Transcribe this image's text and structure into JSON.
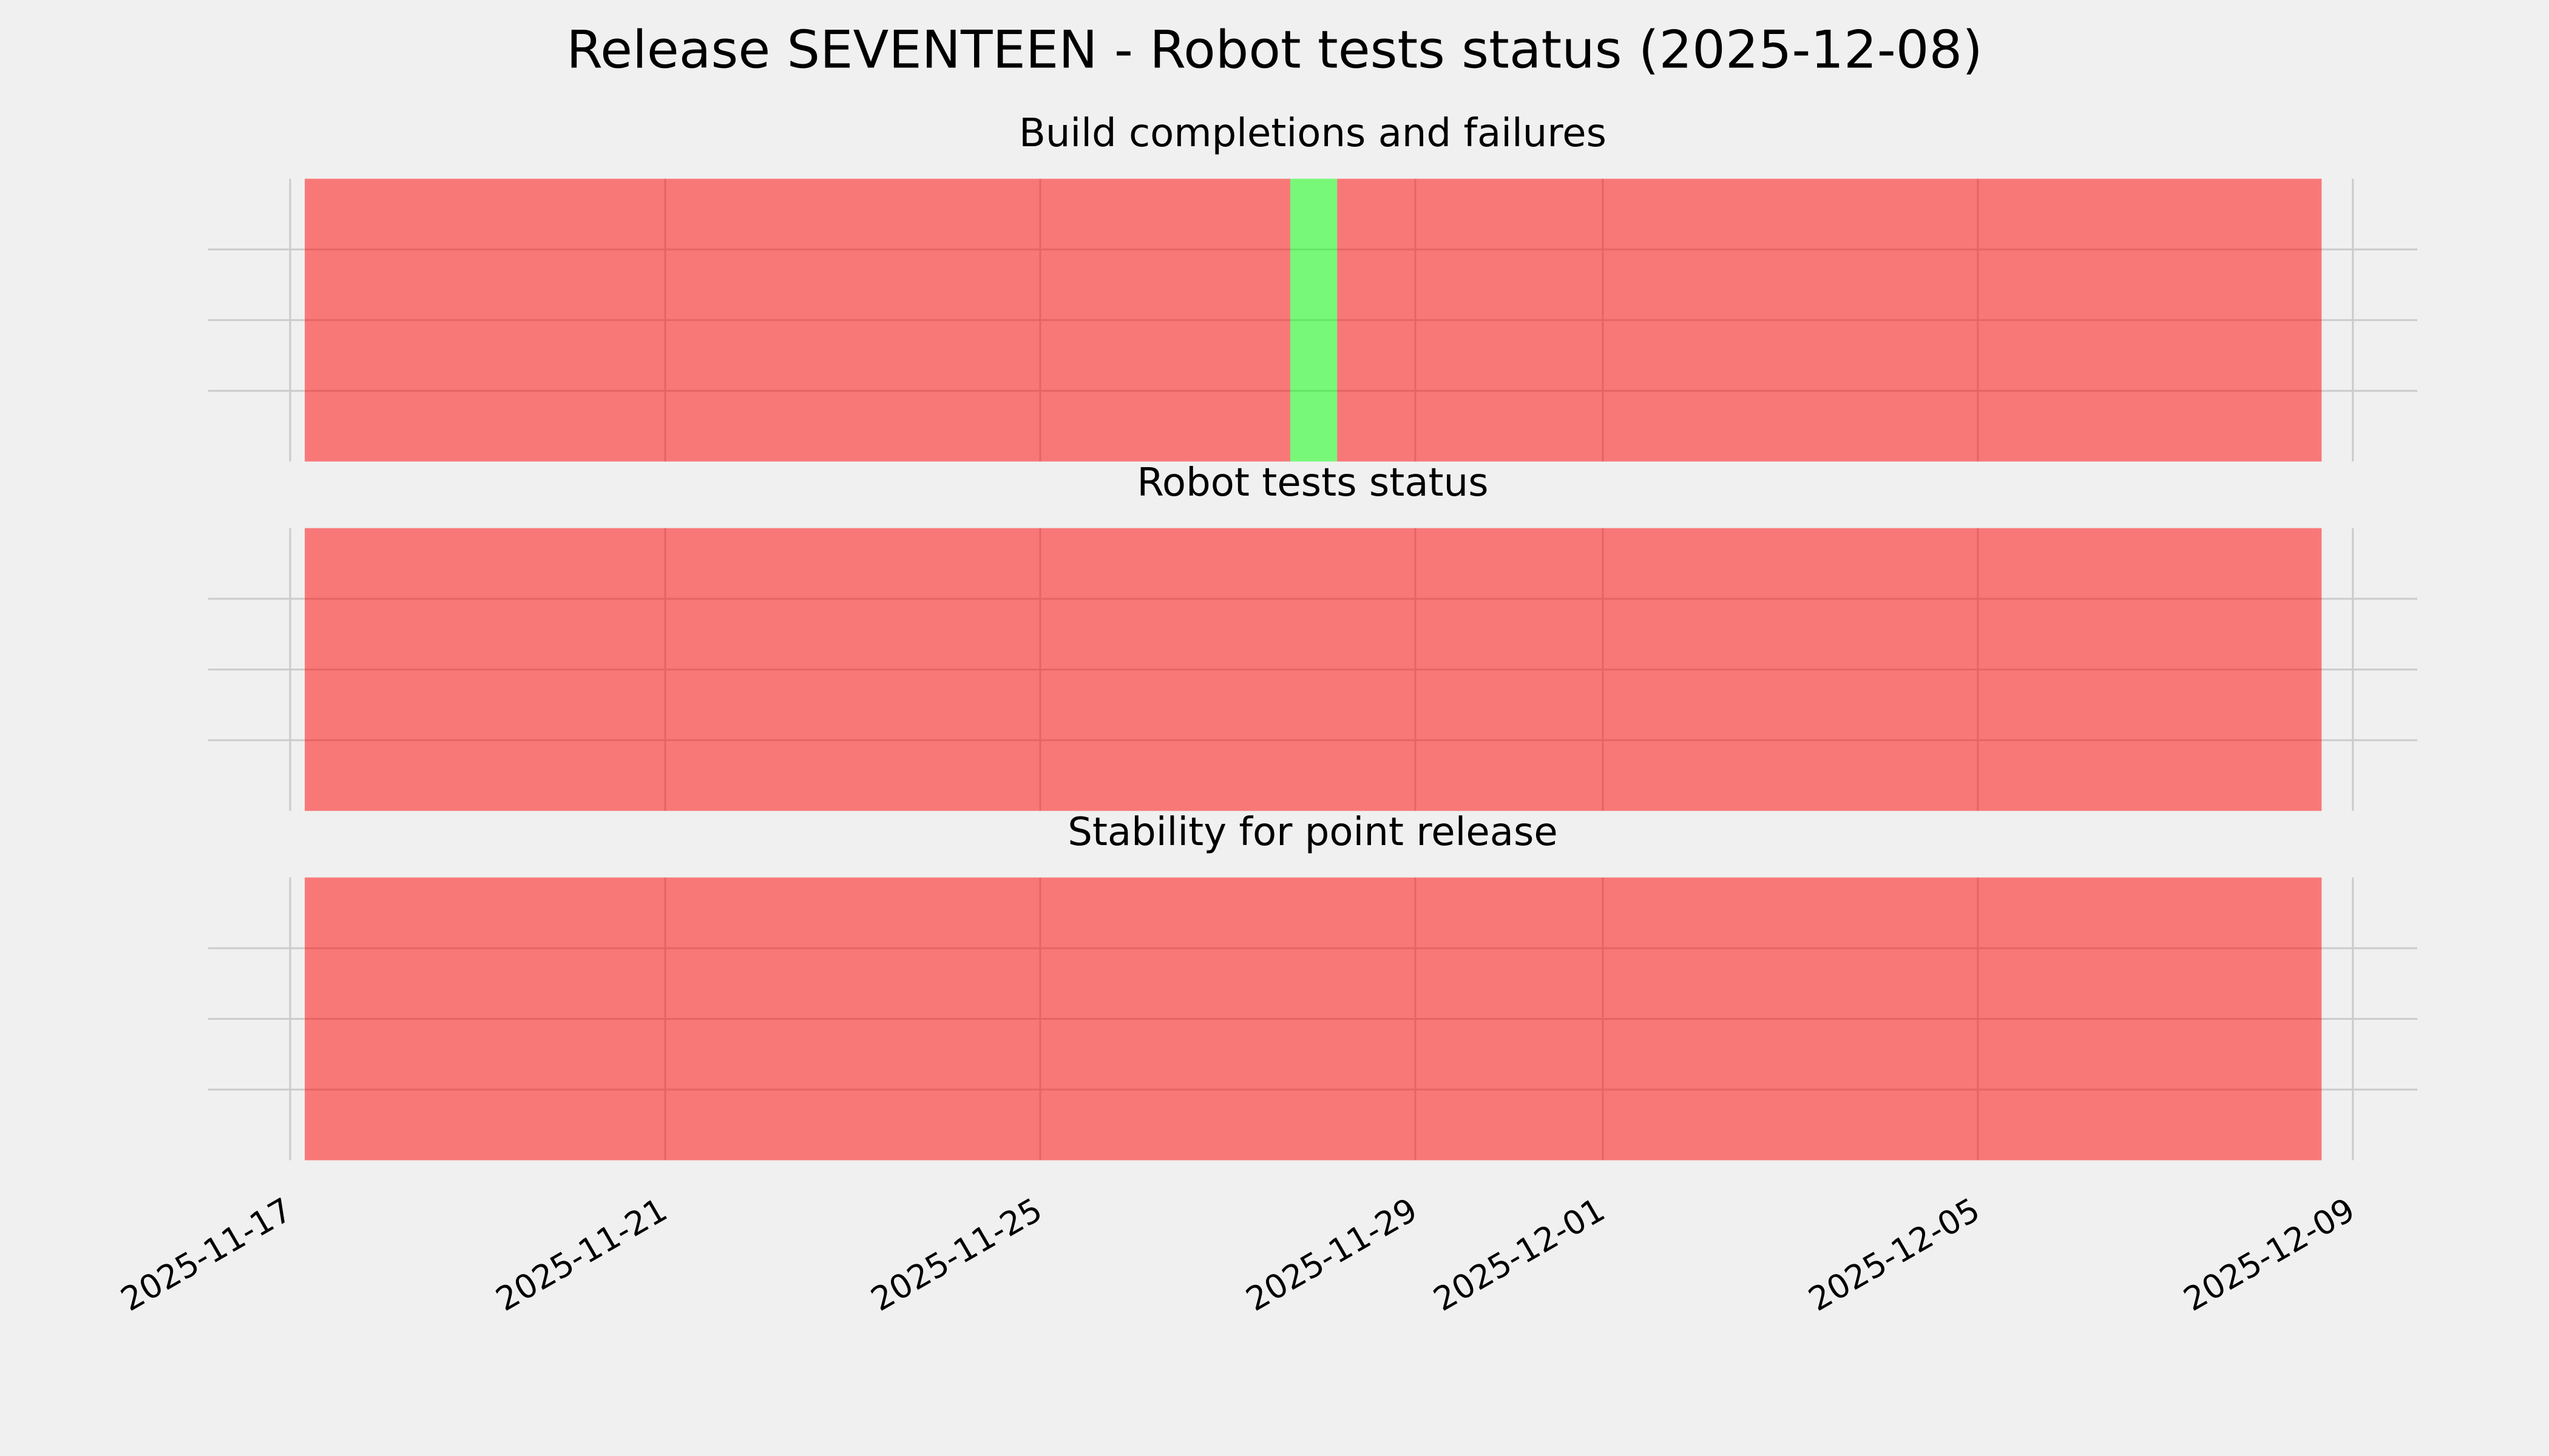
{
  "title": "Release SEVENTEEN - Robot tests status (2025-12-08)",
  "chart_data": [
    {
      "type": "timeline",
      "title": "Build completions and failures",
      "xlim": [
        "2025-11-16T03:00",
        "2025-12-09T16:30"
      ],
      "xticks": [
        "2025-11-17",
        "2025-11-21",
        "2025-11-25",
        "2025-11-29",
        "2025-12-01",
        "2025-12-05",
        "2025-12-09"
      ],
      "ylim": [
        0,
        1
      ],
      "yticks": [
        0.25,
        0.5,
        0.75
      ],
      "grid": true,
      "alpha": 0.5,
      "segments": [
        {
          "start": "2025-11-17T03:45",
          "end": "2025-11-27T16:00",
          "color": "#ff0000"
        },
        {
          "start": "2025-11-27T16:00",
          "end": "2025-11-28T04:00",
          "color": "#00ff00"
        },
        {
          "start": "2025-11-28T04:00",
          "end": "2025-12-08T16:00",
          "color": "#ff0000"
        }
      ]
    },
    {
      "type": "timeline",
      "title": "Robot tests status",
      "xlim": [
        "2025-11-16T03:00",
        "2025-12-09T16:30"
      ],
      "xticks": [
        "2025-11-17",
        "2025-11-21",
        "2025-11-25",
        "2025-11-29",
        "2025-12-01",
        "2025-12-05",
        "2025-12-09"
      ],
      "ylim": [
        0,
        1
      ],
      "yticks": [
        0.25,
        0.5,
        0.75
      ],
      "grid": true,
      "alpha": 0.5,
      "segments": [
        {
          "start": "2025-11-17T03:45",
          "end": "2025-12-08T16:00",
          "color": "#ff0000"
        }
      ]
    },
    {
      "type": "timeline",
      "title": "Stability for point release",
      "xlim": [
        "2025-11-16T03:00",
        "2025-12-09T16:30"
      ],
      "xticks": [
        "2025-11-17",
        "2025-11-21",
        "2025-11-25",
        "2025-11-29",
        "2025-12-01",
        "2025-12-05",
        "2025-12-09"
      ],
      "ylim": [
        0,
        1
      ],
      "yticks": [
        0.25,
        0.5,
        0.75
      ],
      "grid": true,
      "alpha": 0.5,
      "show_xtick_labels": true,
      "segments": [
        {
          "start": "2025-11-17T03:45",
          "end": "2025-12-08T16:00",
          "color": "#ff0000"
        }
      ]
    }
  ]
}
